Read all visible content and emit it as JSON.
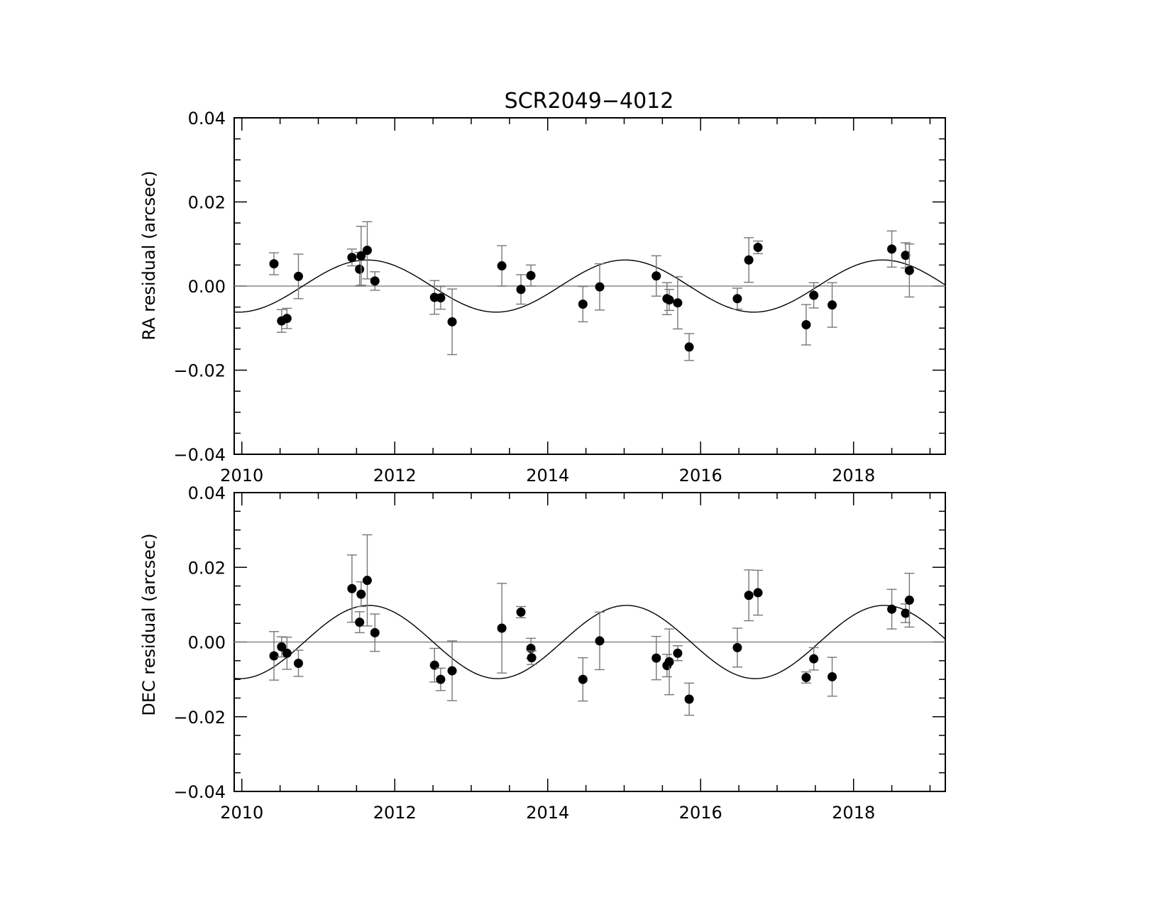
{
  "chart_data": [
    {
      "type": "scatter",
      "title": "SCR2049−4012",
      "xlabel": "",
      "ylabel": "RA residual (arcsec)",
      "xlim": [
        2009.9,
        2019.2
      ],
      "ylim": [
        -0.04,
        0.04
      ],
      "xticks": [
        2010,
        2012,
        2014,
        2016,
        2018
      ],
      "xtick_labels": [
        "2010",
        "2012",
        "2014",
        "2016",
        "2018"
      ],
      "yticks": [
        0.04,
        0.02,
        0.0,
        -0.02,
        -0.04
      ],
      "ytick_labels": [
        "0.04",
        "0.02",
        "0.00",
        "−0.02",
        "−0.04"
      ],
      "grid": false,
      "zero_line": true,
      "model_curve": {
        "amplitude": 0.0062,
        "period_years": 3.37,
        "peak_year": 2011.64
      },
      "series": [
        {
          "points": [
            {
              "x": 2010.42,
              "y": 0.0053,
              "err": 0.0026
            },
            {
              "x": 2010.52,
              "y": -0.0083,
              "err": 0.0027
            },
            {
              "x": 2010.59,
              "y": -0.0077,
              "err": 0.0024
            },
            {
              "x": 2010.74,
              "y": 0.0023,
              "err": 0.0053
            },
            {
              "x": 2011.44,
              "y": 0.0068,
              "err": 0.002
            },
            {
              "x": 2011.54,
              "y": 0.004,
              "err": 0.004
            },
            {
              "x": 2011.56,
              "y": 0.0072,
              "err": 0.007
            },
            {
              "x": 2011.64,
              "y": 0.0085,
              "err": 0.0068
            },
            {
              "x": 2011.74,
              "y": 0.0012,
              "err": 0.0022
            },
            {
              "x": 2012.52,
              "y": -0.0027,
              "err": 0.004
            },
            {
              "x": 2012.6,
              "y": -0.0028,
              "err": 0.0027
            },
            {
              "x": 2012.75,
              "y": -0.0085,
              "err": 0.0078
            },
            {
              "x": 2013.4,
              "y": 0.0048,
              "err": 0.0048
            },
            {
              "x": 2013.65,
              "y": -0.0008,
              "err": 0.0035
            },
            {
              "x": 2013.78,
              "y": 0.0025,
              "err": 0.0025
            },
            {
              "x": 2014.46,
              "y": -0.0043,
              "err": 0.0042
            },
            {
              "x": 2014.68,
              "y": -0.0002,
              "err": 0.0055
            },
            {
              "x": 2015.42,
              "y": 0.0024,
              "err": 0.0048
            },
            {
              "x": 2015.56,
              "y": -0.003,
              "err": 0.0038
            },
            {
              "x": 2015.59,
              "y": -0.0033,
              "err": 0.0025
            },
            {
              "x": 2015.7,
              "y": -0.004,
              "err": 0.0062
            },
            {
              "x": 2015.85,
              "y": -0.0145,
              "err": 0.0032
            },
            {
              "x": 2016.48,
              "y": -0.003,
              "err": 0.0025
            },
            {
              "x": 2016.63,
              "y": 0.0062,
              "err": 0.0053
            },
            {
              "x": 2016.75,
              "y": 0.0092,
              "err": 0.0015
            },
            {
              "x": 2017.38,
              "y": -0.0092,
              "err": 0.0048
            },
            {
              "x": 2017.48,
              "y": -0.0022,
              "err": 0.003
            },
            {
              "x": 2017.72,
              "y": -0.0045,
              "err": 0.0053
            },
            {
              "x": 2018.5,
              "y": 0.0088,
              "err": 0.0043
            },
            {
              "x": 2018.68,
              "y": 0.0073,
              "err": 0.003
            },
            {
              "x": 2018.73,
              "y": 0.0037,
              "err": 0.0063
            }
          ]
        }
      ]
    },
    {
      "type": "scatter",
      "title": "",
      "xlabel": "",
      "ylabel": "DEC residual (arcsec)",
      "xlim": [
        2009.9,
        2019.2
      ],
      "ylim": [
        -0.04,
        0.04
      ],
      "xticks": [
        2010,
        2012,
        2014,
        2016,
        2018
      ],
      "xtick_labels": [
        "2010",
        "2012",
        "2014",
        "2016",
        "2018"
      ],
      "yticks": [
        0.04,
        0.02,
        0.0,
        -0.02,
        -0.04
      ],
      "ytick_labels": [
        "0.04",
        "0.02",
        "0.00",
        "−0.02",
        "−0.04"
      ],
      "grid": false,
      "zero_line": true,
      "model_curve": {
        "amplitude": 0.0098,
        "period_years": 3.37,
        "peak_year": 2011.66
      },
      "series": [
        {
          "points": [
            {
              "x": 2010.42,
              "y": -0.0037,
              "err": 0.0065
            },
            {
              "x": 2010.52,
              "y": -0.0013,
              "err": 0.0027
            },
            {
              "x": 2010.59,
              "y": -0.003,
              "err": 0.0043
            },
            {
              "x": 2010.74,
              "y": -0.0057,
              "err": 0.0035
            },
            {
              "x": 2011.44,
              "y": 0.0143,
              "err": 0.009
            },
            {
              "x": 2011.54,
              "y": 0.0053,
              "err": 0.0028
            },
            {
              "x": 2011.56,
              "y": 0.0128,
              "err": 0.0033
            },
            {
              "x": 2011.64,
              "y": 0.0165,
              "err": 0.0122
            },
            {
              "x": 2011.74,
              "y": 0.0025,
              "err": 0.005
            },
            {
              "x": 2012.52,
              "y": -0.0062,
              "err": 0.0045
            },
            {
              "x": 2012.6,
              "y": -0.01,
              "err": 0.003
            },
            {
              "x": 2012.75,
              "y": -0.0077,
              "err": 0.008
            },
            {
              "x": 2013.4,
              "y": 0.0037,
              "err": 0.012
            },
            {
              "x": 2013.65,
              "y": 0.008,
              "err": 0.0015
            },
            {
              "x": 2013.78,
              "y": -0.0017,
              "err": 0.0027
            },
            {
              "x": 2013.79,
              "y": -0.0042,
              "err": 0.0018
            },
            {
              "x": 2014.46,
              "y": -0.01,
              "err": 0.0058
            },
            {
              "x": 2014.68,
              "y": 0.0003,
              "err": 0.0077
            },
            {
              "x": 2015.42,
              "y": -0.0043,
              "err": 0.0058
            },
            {
              "x": 2015.56,
              "y": -0.0063,
              "err": 0.003
            },
            {
              "x": 2015.59,
              "y": -0.0053,
              "err": 0.0088
            },
            {
              "x": 2015.7,
              "y": -0.003,
              "err": 0.002
            },
            {
              "x": 2015.85,
              "y": -0.0153,
              "err": 0.0043
            },
            {
              "x": 2016.48,
              "y": -0.0015,
              "err": 0.0052
            },
            {
              "x": 2016.63,
              "y": 0.0125,
              "err": 0.0068
            },
            {
              "x": 2016.75,
              "y": 0.0132,
              "err": 0.006
            },
            {
              "x": 2017.38,
              "y": -0.0095,
              "err": 0.0015
            },
            {
              "x": 2017.48,
              "y": -0.0045,
              "err": 0.003
            },
            {
              "x": 2017.72,
              "y": -0.0093,
              "err": 0.0052
            },
            {
              "x": 2018.5,
              "y": 0.0088,
              "err": 0.0053
            },
            {
              "x": 2018.68,
              "y": 0.0077,
              "err": 0.0025
            },
            {
              "x": 2018.73,
              "y": 0.0112,
              "err": 0.0072
            }
          ]
        }
      ]
    }
  ]
}
